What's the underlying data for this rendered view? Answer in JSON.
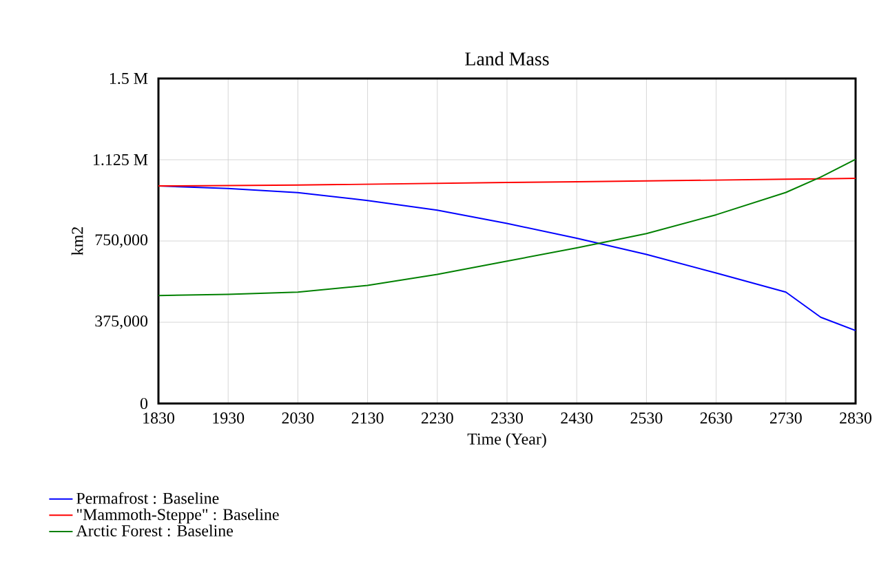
{
  "chart_data": {
    "type": "line",
    "title": "Land Mass",
    "xlabel": "Time (Year)",
    "ylabel": "km2",
    "x": [
      1830,
      1930,
      2030,
      2130,
      2230,
      2330,
      2430,
      2530,
      2630,
      2730,
      2780,
      2830
    ],
    "series": [
      {
        "name": "Permafrost : Baseline",
        "color": "#0000ff",
        "values": [
          1004000,
          992000,
          973000,
          937000,
          892000,
          831000,
          763000,
          688000,
          602000,
          514000,
          398000,
          337000
        ]
      },
      {
        "name": "\"Mammoth-Steppe\" : Baseline",
        "color": "#ff0000",
        "values": [
          1004000,
          1006000,
          1008000,
          1012000,
          1016000,
          1020000,
          1023000,
          1027000,
          1031000,
          1035000,
          1037000,
          1039000
        ]
      },
      {
        "name": "Arctic Forest : Baseline",
        "color": "#008000",
        "values": [
          498000,
          504000,
          514000,
          545000,
          596000,
          657000,
          718000,
          784000,
          871000,
          974000,
          1045000,
          1127000
        ]
      }
    ],
    "xlim": [
      1830,
      2830
    ],
    "xticks": [
      1830,
      1930,
      2030,
      2130,
      2230,
      2330,
      2430,
      2530,
      2630,
      2730,
      2830
    ],
    "ylim": [
      0,
      1500000
    ],
    "yticks": [
      0,
      {
        "value": 375000,
        "label": "375,000"
      },
      {
        "value": 750000,
        "label": "750,000"
      },
      {
        "value": 1125000,
        "label": "1.125 M"
      },
      {
        "value": 1500000,
        "label": "1.5 M"
      }
    ],
    "grid": true,
    "legend": "bottom",
    "line_style": "solid"
  }
}
